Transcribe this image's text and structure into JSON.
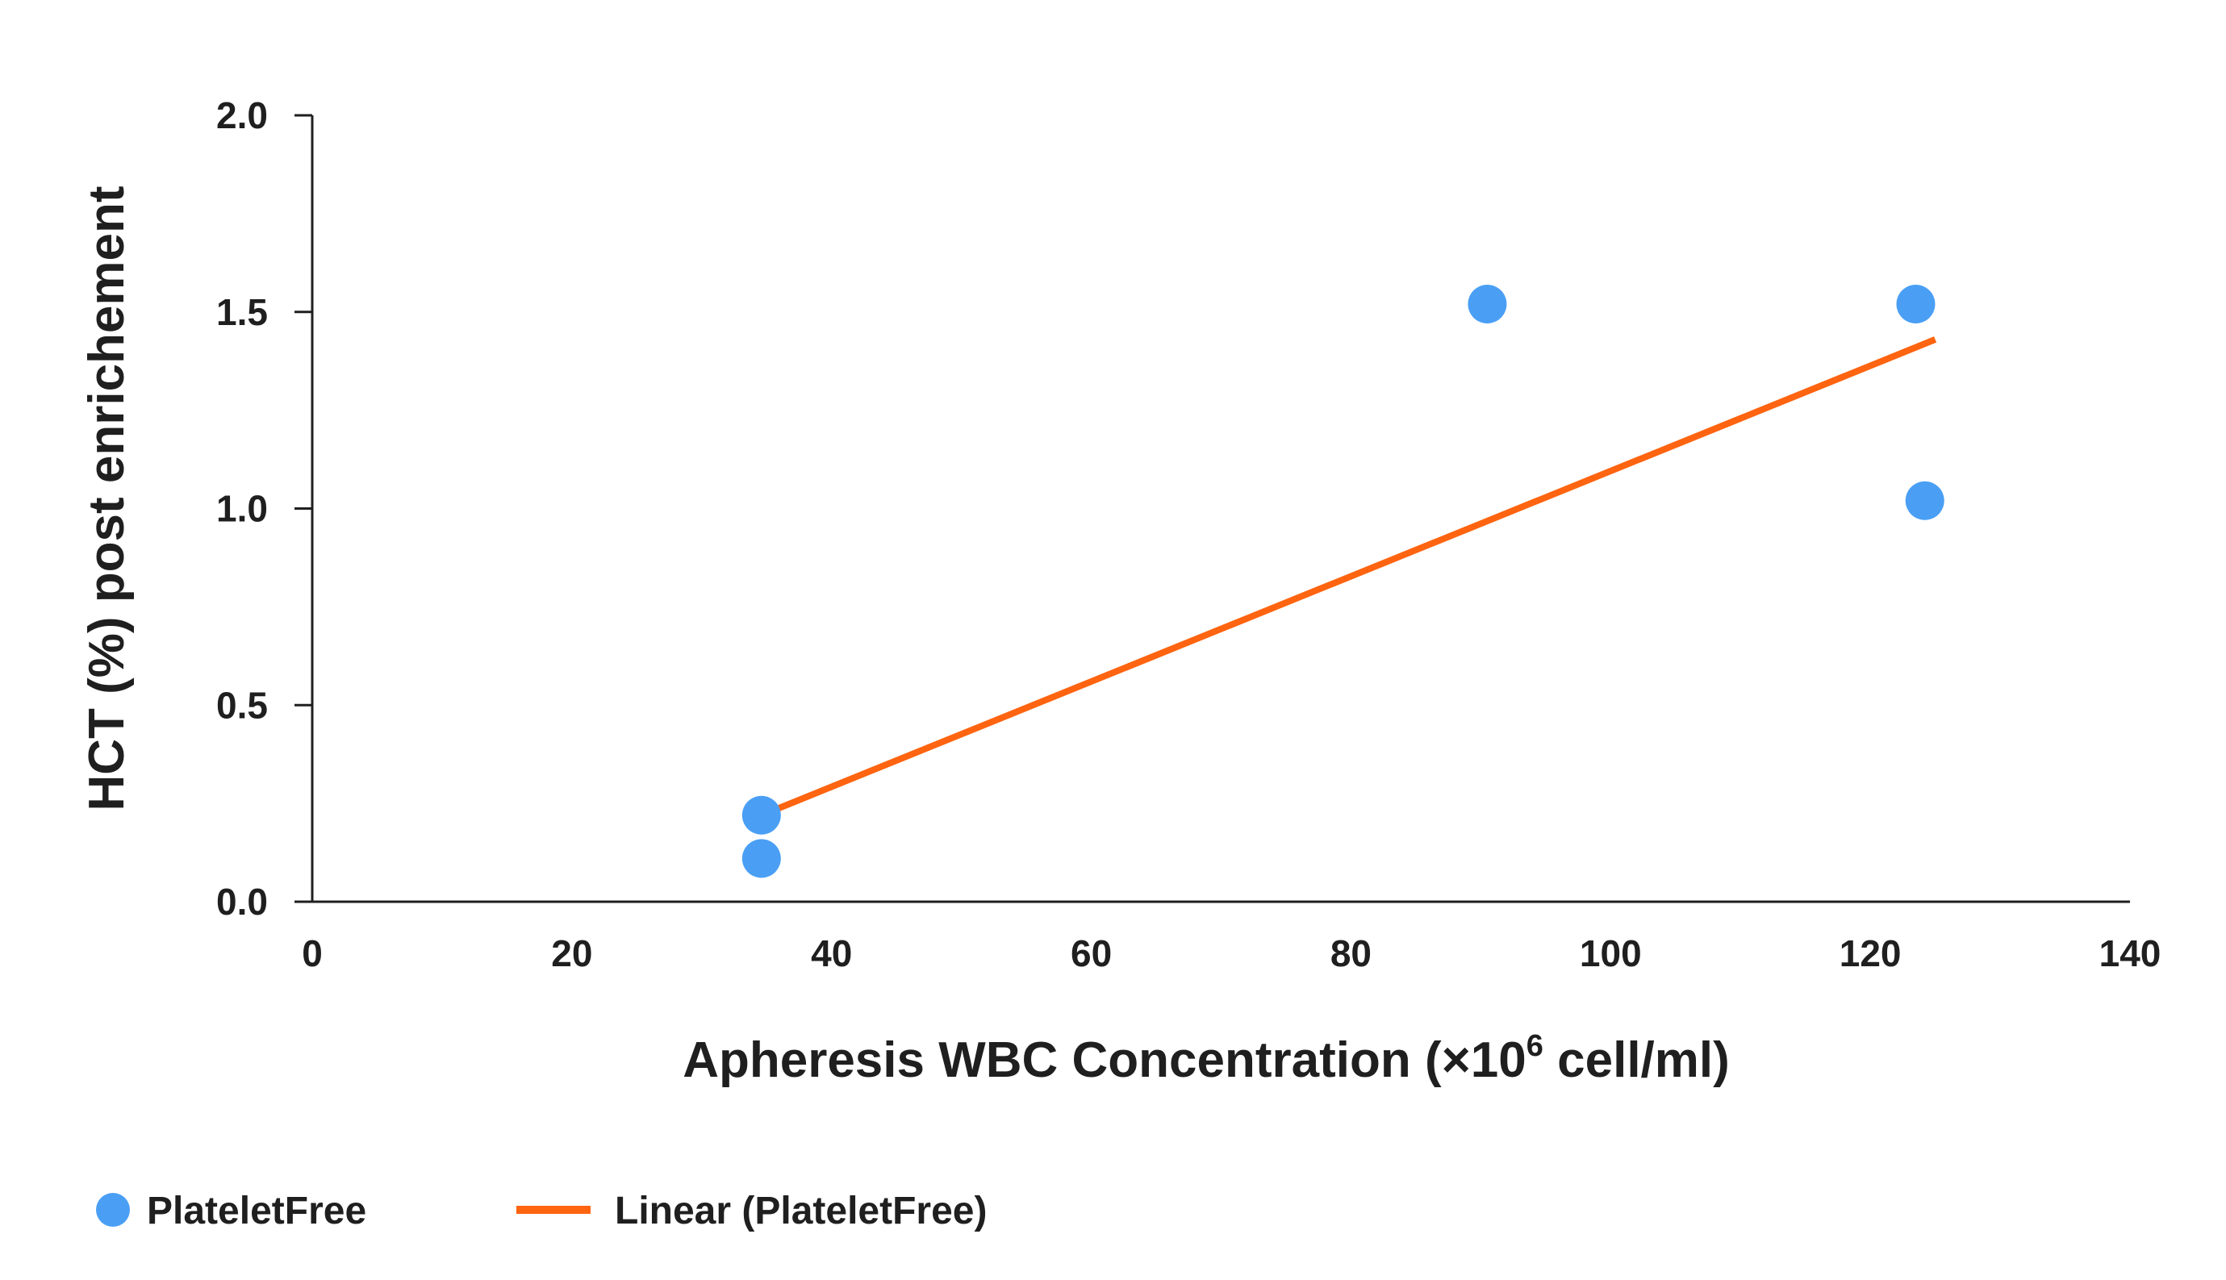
{
  "chart_data": {
    "type": "scatter",
    "title": "",
    "xlabel": "Apheresis WBC Concentration (×10",
    "xlabel_superscript": "6",
    "xlabel_suffix": " cell/ml)",
    "ylabel": "HCT (%) post enrichement",
    "xlim": [
      0,
      140
    ],
    "ylim": [
      0,
      2.0
    ],
    "xticks": [
      0,
      20,
      40,
      60,
      80,
      100,
      120,
      140
    ],
    "yticks": [
      "0.0",
      "0.5",
      "1.0",
      "1.5",
      "2.0"
    ],
    "grid": false,
    "legend_position": "bottom-left",
    "series": [
      {
        "name": "PlateletFree",
        "kind": "scatter",
        "color": "#4a9ff5",
        "points": [
          {
            "x": 34.6,
            "y": 0.22
          },
          {
            "x": 34.6,
            "y": 0.11
          },
          {
            "x": 90.5,
            "y": 1.52
          },
          {
            "x": 123.5,
            "y": 1.52
          },
          {
            "x": 124.2,
            "y": 1.02
          }
        ]
      },
      {
        "name": "Linear (PlateletFree)",
        "kind": "trendline",
        "color": "#ff6410",
        "points": [
          {
            "x": 34.6,
            "y": 0.22
          },
          {
            "x": 125,
            "y": 1.43
          }
        ]
      }
    ]
  }
}
